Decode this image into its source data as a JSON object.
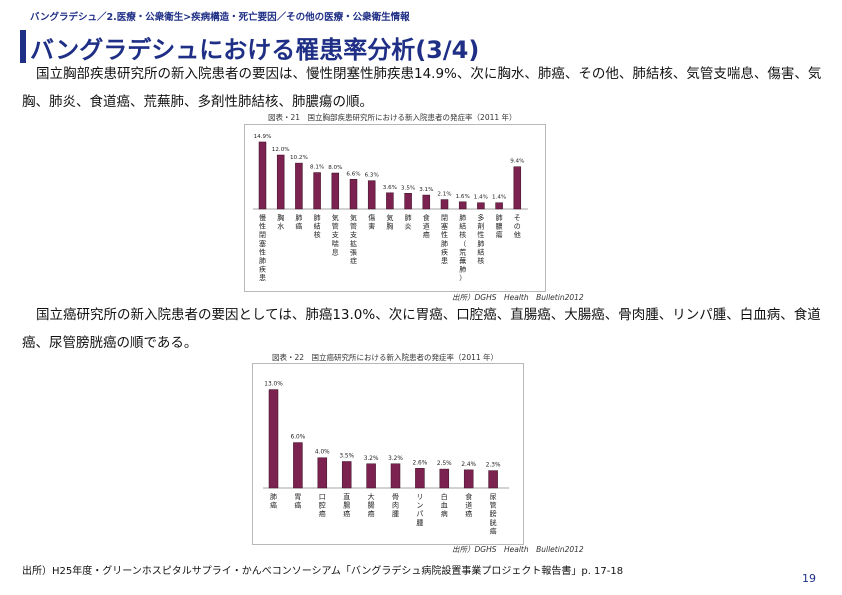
{
  "breadcrumb": "バングラデシュ／2.医療・公衆衛生>疾病構造・死亡要因／その他の医療・公衆衛生情報",
  "title": "バングラデシュにおける罹患率分析(3/4)",
  "para1": "国立胸部疾患研究所の新入院患者の要因は、慢性閉塞性肺疾患14.9%、次に胸水、肺癌、その他、肺結核、気管支喘息、傷害、気胸、肺炎、食道癌、荒蕪肺、多剤性肺結核、肺膿瘍の順。",
  "para2": "国立癌研究所の新入院患者の要因としては、肺癌13.0%、次に胃癌、口腔癌、直腸癌、大腸癌、骨肉腫、リンパ腫、白血病、食道癌、尿管膀胱癌の順である。",
  "footer_source": "出所）H25年度・グリーンホスピタルサプライ・かんべコンソーシアム「バングラデシュ病院設置事業プロジェクト報告書」p. 17-18",
  "page_number": "19",
  "chart_data": [
    {
      "type": "bar",
      "title": "図表・21　国立胸部疾患研究所における新入院患者の発症率（2011 年）",
      "source": "出所）DGHS　Health　Bulletin2012",
      "categories": [
        "慢性閉塞性肺疾患",
        "胸水",
        "肺癌",
        "肺結核",
        "気管支喘息",
        "気管支拡張症",
        "傷害",
        "気胸",
        "肺炎",
        "食道癌",
        "閉塞性肺疾患",
        "肺結核（荒蕪肺）",
        "多剤性肺結核",
        "肺膿瘍",
        "その他"
      ],
      "values": [
        14.9,
        12.0,
        10.2,
        8.1,
        8.0,
        6.6,
        6.3,
        3.6,
        3.5,
        3.1,
        2.1,
        1.6,
        1.4,
        1.4,
        9.4
      ],
      "value_labels": [
        "14.9%",
        "12.0%",
        "10.2%",
        "8.1%",
        "8.0%",
        "6.6%",
        "6.3%",
        "3.6%",
        "3.5%",
        "3.1%",
        "2.1%",
        "1.6%",
        "1.4%",
        "1.4%",
        "9.4%"
      ],
      "ylim": [
        0,
        16
      ],
      "bar_color": "#7b2250"
    },
    {
      "type": "bar",
      "title": "図表・22　国立癌研究所における新入院患者の発症率（2011 年）",
      "source": "出所）DGHS　Health　Bulletin2012",
      "categories": [
        "肺癌",
        "胃癌",
        "口腔癌",
        "直腸癌",
        "大腸癌",
        "骨肉腫",
        "リンパ腫",
        "白血病",
        "食道癌",
        "尿管膀胱癌"
      ],
      "values": [
        13.0,
        6.0,
        4.0,
        3.5,
        3.2,
        3.2,
        2.6,
        2.5,
        2.4,
        2.3
      ],
      "value_labels": [
        "13.0%",
        "6.0%",
        "4.0%",
        "3.5%",
        "3.2%",
        "3.2%",
        "2.6%",
        "2.5%",
        "2.4%",
        "2.3%"
      ],
      "ylim": [
        0,
        14
      ],
      "bar_color": "#7b2250"
    }
  ]
}
